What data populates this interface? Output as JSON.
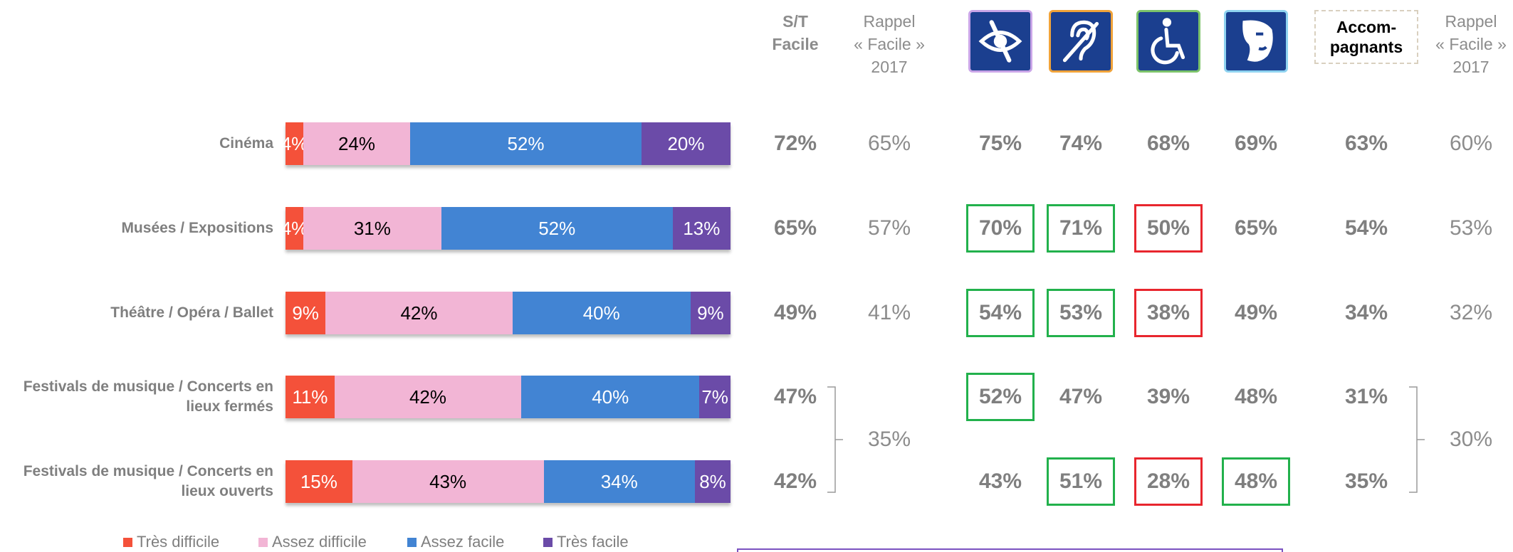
{
  "chart_data": {
    "type": "stacked-bar",
    "categories": [
      "Cinéma",
      "Musées / Expositions",
      "Théâtre / Opéra / Ballet",
      "Festivals de musique / Concerts en lieux fermés",
      "Festivals de musique / Concerts en lieux ouverts"
    ],
    "series": [
      {
        "name": "Très difficile",
        "color": "#f4513a",
        "text_color": "#ffffff",
        "values": [
          4,
          4,
          9,
          11,
          15
        ],
        "value_labels": [
          "4%",
          "4%",
          "9%",
          "11%",
          "15%"
        ]
      },
      {
        "name": "Assez difficile",
        "color": "#f2b5d5",
        "text_color": "#000000",
        "values": [
          24,
          31,
          42,
          42,
          43
        ],
        "value_labels": [
          "24%",
          "31%",
          "42%",
          "42%",
          "43%"
        ]
      },
      {
        "name": "Assez facile",
        "color": "#4284d3",
        "text_color": "#ffffff",
        "values": [
          52,
          52,
          40,
          40,
          34
        ],
        "value_labels": [
          "52%",
          "52%",
          "40%",
          "40%",
          "34%"
        ]
      },
      {
        "name": "Très facile",
        "color": "#6b4ba8",
        "text_color": "#ffffff",
        "values": [
          20,
          13,
          9,
          7,
          8
        ],
        "value_labels": [
          "20%",
          "13%",
          "9%",
          "7%",
          "8%"
        ]
      }
    ],
    "legend": "bottom"
  },
  "table": {
    "columns": [
      {
        "header": [
          "S/T",
          "Facile"
        ],
        "bold": true,
        "cells": [
          "72%",
          "65%",
          "49%",
          "47%",
          "42%"
        ]
      },
      {
        "header": [
          "Rappel",
          "« Facile »",
          "2017"
        ],
        "bold": false,
        "cells": [
          "65%",
          "57%",
          "41%",
          null,
          null
        ],
        "merged": "35%"
      },
      {
        "icon": "visual",
        "icon_border": "#c9a5e8",
        "bold": true,
        "cells": [
          "75%",
          "70%",
          "54%",
          "52%",
          "43%"
        ],
        "frames": [
          null,
          "#22b14c",
          "#22b14c",
          "#22b14c",
          null
        ]
      },
      {
        "icon": "hearing",
        "icon_border": "#f0a33a",
        "bold": true,
        "cells": [
          "74%",
          "71%",
          "53%",
          "47%",
          "51%"
        ],
        "frames": [
          null,
          "#22b14c",
          "#22b14c",
          null,
          "#22b14c"
        ]
      },
      {
        "icon": "motor",
        "icon_border": "#7cc36a",
        "bold": true,
        "cells": [
          "68%",
          "50%",
          "38%",
          "39%",
          "28%"
        ],
        "frames": [
          null,
          "#e8262e",
          "#e8262e",
          null,
          "#e8262e"
        ]
      },
      {
        "icon": "mental",
        "icon_border": "#8fd3f0",
        "bold": true,
        "cells": [
          "69%",
          "65%",
          "49%",
          "48%",
          "48%"
        ],
        "frames": [
          null,
          null,
          null,
          null,
          "#22b14c"
        ]
      },
      {
        "header": [
          "Accom-",
          "pagnants"
        ],
        "header_box": true,
        "bold": true,
        "cells": [
          "63%",
          "54%",
          "34%",
          "31%",
          "35%"
        ]
      },
      {
        "header": [
          "Rappel",
          "« Facile »",
          "2017"
        ],
        "bold": false,
        "cells": [
          "60%",
          "53%",
          "32%",
          null,
          null
        ],
        "merged": "30%"
      }
    ]
  }
}
